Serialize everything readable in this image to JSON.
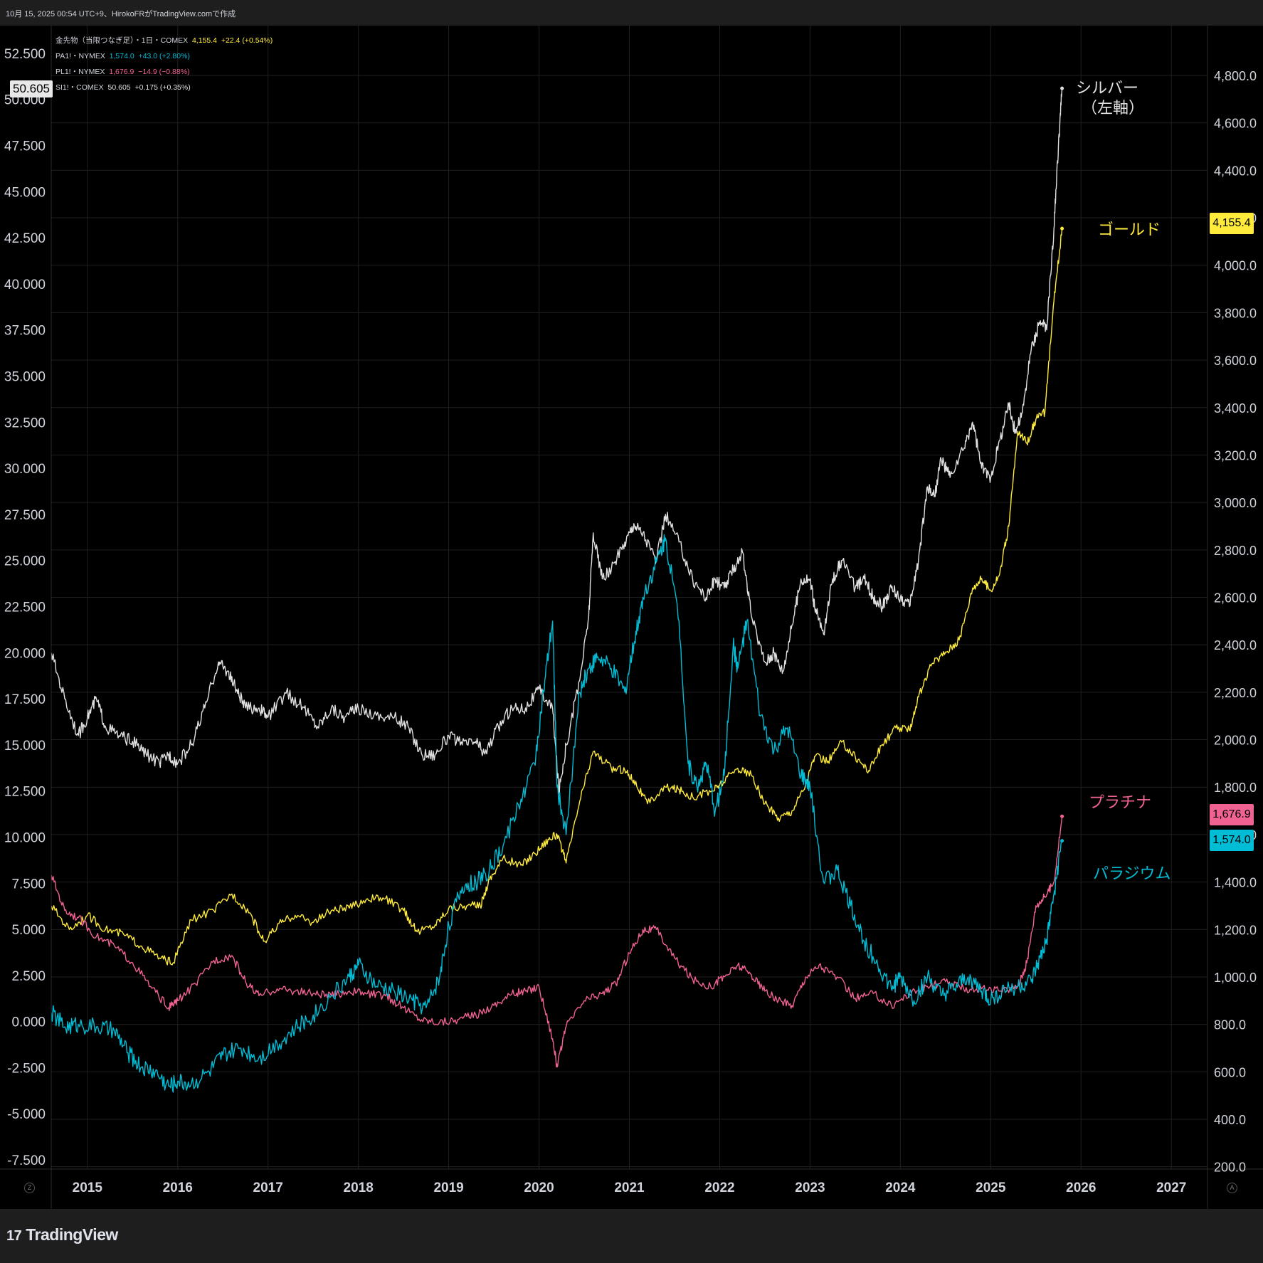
{
  "header": {
    "caption": "10月 15, 2025 00:54 UTC+9、HirokoFRがTradingView.comで作成"
  },
  "legend": [
    {
      "symbol": "金先物（当限つなぎ足）・1日・COMEX",
      "value": "4,155.4",
      "change": "+22.4 (+0.54%)",
      "color": "#ffeb3b"
    },
    {
      "symbol": "PA1!・NYMEX",
      "value": "1,574.0",
      "change": "+43.0 (+2.80%)",
      "color": "#00bcd4"
    },
    {
      "symbol": "PL1!・NYMEX",
      "value": "1,676.9",
      "change": "−14.9 (−0.88%)",
      "color": "#f06292"
    },
    {
      "symbol": "SI1!・COMEX",
      "value": "50.605",
      "change": "+0.175 (+0.35%)",
      "color": "#e0e0e0"
    }
  ],
  "crosshair_value": "50.605",
  "series_labels": {
    "silver_line1": "シルバー",
    "silver_line2": "（左軸）",
    "gold": "ゴールド",
    "platinum": "プラチナ",
    "palladium": "パラジウム"
  },
  "price_tags": [
    {
      "text": "4,155.4",
      "value": 4155.4,
      "color": "#ffeb3b"
    },
    {
      "text": "1,676.9",
      "value": 1676.9,
      "color": "#f06292"
    },
    {
      "text": "1,574.0",
      "value": 1574.0,
      "color": "#00bcd4"
    }
  ],
  "axis_buttons": {
    "left": "Z",
    "right": "A"
  },
  "logo": {
    "mark": "17",
    "text": "TradingView"
  },
  "colors": {
    "background": "#000000",
    "grid": "#1f1f1f",
    "gold": "#ffeb3b",
    "silver": "#e0e0e0",
    "platinum": "#f06292",
    "palladium": "#00bcd4"
  },
  "chart_data": {
    "type": "line",
    "grid": true,
    "left_axis": {
      "ticks": [
        "52.500",
        "50.000",
        "47.500",
        "45.000",
        "42.500",
        "40.000",
        "37.500",
        "35.000",
        "32.500",
        "30.000",
        "27.500",
        "25.000",
        "22.500",
        "20.000",
        "17.500",
        "15.000",
        "12.500",
        "10.000",
        "7.500",
        "5.000",
        "2.500",
        "0.000",
        "-2.500",
        "-5.000",
        "-7.500"
      ],
      "ylim": [
        -8.0,
        54.0
      ]
    },
    "right_axis": {
      "ticks": [
        "4,800.0",
        "4,600.0",
        "4,400.0",
        "4,200.0",
        "4,000.0",
        "3,800.0",
        "3,600.0",
        "3,400.0",
        "3,200.0",
        "3,000.0",
        "2,800.0",
        "2,600.0",
        "2,400.0",
        "2,200.0",
        "2,000.0",
        "1,800.0",
        "1,600.0",
        "1,400.0",
        "1,200.0",
        "1,000.0",
        "800.0",
        "600.0",
        "400.0",
        "200.0"
      ],
      "ylim": [
        190,
        5010
      ]
    },
    "x_axis": {
      "ticks": [
        "2015",
        "2016",
        "2017",
        "2018",
        "2019",
        "2020",
        "2021",
        "2022",
        "2023",
        "2024",
        "2025",
        "2026",
        "2027"
      ],
      "xlim": [
        2014.6,
        2027.4
      ]
    },
    "series": [
      {
        "name": "シルバー",
        "axis": "left",
        "color": "#e0e0e0",
        "x": [
          2014.6,
          2014.75,
          2014.9,
          2015.0,
          2015.1,
          2015.2,
          2015.35,
          2015.5,
          2015.65,
          2015.8,
          2015.9,
          2016.0,
          2016.15,
          2016.3,
          2016.45,
          2016.55,
          2016.65,
          2016.75,
          2016.9,
          2017.0,
          2017.2,
          2017.4,
          2017.55,
          2017.7,
          2017.85,
          2018.0,
          2018.2,
          2018.4,
          2018.55,
          2018.7,
          2018.85,
          2019.0,
          2019.15,
          2019.3,
          2019.4,
          2019.55,
          2019.7,
          2019.85,
          2020.0,
          2020.15,
          2020.22,
          2020.3,
          2020.45,
          2020.55,
          2020.6,
          2020.7,
          2020.8,
          2020.95,
          2021.05,
          2021.15,
          2021.3,
          2021.4,
          2021.55,
          2021.7,
          2021.85,
          2021.95,
          2022.05,
          2022.15,
          2022.25,
          2022.35,
          2022.5,
          2022.6,
          2022.7,
          2022.8,
          2022.9,
          2023.0,
          2023.05,
          2023.15,
          2023.25,
          2023.35,
          2023.5,
          2023.6,
          2023.7,
          2023.8,
          2023.9,
          2024.0,
          2024.1,
          2024.2,
          2024.3,
          2024.38,
          2024.45,
          2024.55,
          2024.7,
          2024.8,
          2024.9,
          2025.0,
          2025.1,
          2025.2,
          2025.27,
          2025.35,
          2025.45,
          2025.55,
          2025.62,
          2025.7,
          2025.75,
          2025.79
        ],
        "y": [
          20.0,
          17.5,
          15.5,
          16.5,
          17.5,
          16.0,
          15.5,
          15.2,
          14.5,
          14.0,
          14.5,
          14.0,
          15.0,
          17.0,
          19.5,
          19.0,
          18.0,
          17.0,
          17.0,
          16.5,
          17.8,
          17.0,
          16.0,
          17.0,
          16.5,
          17.0,
          16.6,
          16.5,
          16.0,
          14.5,
          14.5,
          15.5,
          15.0,
          15.2,
          14.5,
          16.0,
          17.0,
          17.0,
          18.0,
          17.0,
          12.5,
          15.0,
          18.5,
          22.0,
          26.5,
          24.0,
          24.5,
          26.0,
          27.0,
          26.5,
          25.0,
          27.5,
          26.0,
          24.0,
          23.0,
          24.0,
          23.5,
          24.5,
          25.5,
          22.0,
          19.5,
          20.0,
          19.0,
          21.5,
          24.0,
          24.0,
          22.5,
          21.0,
          24.0,
          25.0,
          23.5,
          24.0,
          23.0,
          22.5,
          23.5,
          23.0,
          22.5,
          25.0,
          29.0,
          28.5,
          30.5,
          29.5,
          31.0,
          32.5,
          30.0,
          29.5,
          31.5,
          33.5,
          32.0,
          33.0,
          36.5,
          38.0,
          37.5,
          43.0,
          47.5,
          50.6
        ]
      },
      {
        "name": "ゴールド",
        "axis": "right",
        "color": "#ffeb3b",
        "x": [
          2014.6,
          2014.8,
          2015.0,
          2015.2,
          2015.4,
          2015.6,
          2015.8,
          2015.95,
          2016.15,
          2016.4,
          2016.6,
          2016.8,
          2016.95,
          2017.15,
          2017.3,
          2017.5,
          2017.7,
          2017.9,
          2018.1,
          2018.3,
          2018.5,
          2018.65,
          2018.85,
          2019.0,
          2019.2,
          2019.35,
          2019.45,
          2019.6,
          2019.8,
          2019.95,
          2020.1,
          2020.2,
          2020.3,
          2020.45,
          2020.6,
          2020.8,
          2020.95,
          2021.05,
          2021.2,
          2021.4,
          2021.55,
          2021.7,
          2021.9,
          2022.0,
          2022.2,
          2022.35,
          2022.5,
          2022.65,
          2022.8,
          2022.95,
          2023.05,
          2023.2,
          2023.35,
          2023.5,
          2023.65,
          2023.8,
          2023.95,
          2024.1,
          2024.2,
          2024.35,
          2024.5,
          2024.65,
          2024.8,
          2024.9,
          2025.0,
          2025.1,
          2025.2,
          2025.3,
          2025.4,
          2025.5,
          2025.6,
          2025.7,
          2025.79
        ],
        "y": [
          1300,
          1200,
          1260,
          1200,
          1180,
          1130,
          1080,
          1060,
          1240,
          1280,
          1350,
          1270,
          1150,
          1230,
          1260,
          1230,
          1280,
          1290,
          1330,
          1330,
          1280,
          1190,
          1220,
          1290,
          1300,
          1300,
          1410,
          1500,
          1470,
          1520,
          1580,
          1600,
          1480,
          1740,
          1950,
          1880,
          1870,
          1830,
          1730,
          1800,
          1790,
          1760,
          1780,
          1810,
          1880,
          1850,
          1730,
          1670,
          1700,
          1810,
          1930,
          1910,
          1990,
          1930,
          1870,
          1980,
          2050,
          2040,
          2180,
          2320,
          2370,
          2420,
          2640,
          2680,
          2630,
          2700,
          2900,
          3300,
          3250,
          3350,
          3380,
          3850,
          4155
        ]
      },
      {
        "name": "プラチナ",
        "axis": "right",
        "color": "#f06292",
        "x": [
          2014.6,
          2014.75,
          2014.9,
          2015.1,
          2015.3,
          2015.5,
          2015.7,
          2015.9,
          2016.0,
          2016.2,
          2016.4,
          2016.6,
          2016.75,
          2016.9,
          2017.1,
          2017.3,
          2017.5,
          2017.7,
          2017.9,
          2018.1,
          2018.3,
          2018.5,
          2018.7,
          2018.9,
          2019.1,
          2019.3,
          2019.5,
          2019.7,
          2019.85,
          2020.0,
          2020.15,
          2020.2,
          2020.3,
          2020.5,
          2020.7,
          2020.85,
          2021.0,
          2021.15,
          2021.3,
          2021.5,
          2021.7,
          2021.9,
          2022.05,
          2022.2,
          2022.35,
          2022.5,
          2022.65,
          2022.8,
          2022.95,
          2023.1,
          2023.3,
          2023.5,
          2023.7,
          2023.9,
          2024.1,
          2024.3,
          2024.5,
          2024.7,
          2024.9,
          2025.1,
          2025.3,
          2025.4,
          2025.5,
          2025.6,
          2025.7,
          2025.79
        ],
        "y": [
          1430,
          1280,
          1250,
          1170,
          1130,
          1060,
          960,
          870,
          900,
          970,
          1070,
          1090,
          980,
          920,
          950,
          940,
          930,
          920,
          940,
          930,
          920,
          870,
          820,
          810,
          820,
          840,
          880,
          930,
          940,
          960,
          740,
          620,
          790,
          900,
          930,
          970,
          1100,
          1200,
          1200,
          1080,
          990,
          960,
          1000,
          1050,
          1010,
          940,
          900,
          880,
          1000,
          1050,
          1000,
          910,
          930,
          880,
          930,
          960,
          980,
          950,
          950,
          940,
          960,
          1060,
          1300,
          1340,
          1400,
          1677
        ]
      },
      {
        "name": "パラジウム",
        "axis": "right",
        "color": "#00bcd4",
        "x": [
          2014.6,
          2014.75,
          2014.9,
          2015.1,
          2015.3,
          2015.45,
          2015.6,
          2015.75,
          2015.9,
          2016.0,
          2016.15,
          2016.35,
          2016.5,
          2016.7,
          2016.9,
          2017.1,
          2017.3,
          2017.5,
          2017.7,
          2017.9,
          2018.0,
          2018.2,
          2018.4,
          2018.6,
          2018.75,
          2018.9,
          2019.0,
          2019.15,
          2019.3,
          2019.45,
          2019.6,
          2019.8,
          2019.95,
          2020.05,
          2020.15,
          2020.2,
          2020.3,
          2020.45,
          2020.55,
          2020.65,
          2020.8,
          2020.95,
          2021.05,
          2021.15,
          2021.3,
          2021.4,
          2021.55,
          2021.65,
          2021.75,
          2021.85,
          2021.95,
          2022.05,
          2022.15,
          2022.2,
          2022.3,
          2022.45,
          2022.6,
          2022.75,
          2022.9,
          2023.0,
          2023.15,
          2023.3,
          2023.45,
          2023.6,
          2023.75,
          2023.9,
          2024.0,
          2024.15,
          2024.3,
          2024.45,
          2024.6,
          2024.75,
          2024.9,
          2025.0,
          2025.15,
          2025.3,
          2025.45,
          2025.55,
          2025.62,
          2025.7,
          2025.79
        ],
        "y": [
          850,
          790,
          800,
          790,
          770,
          680,
          620,
          600,
          540,
          560,
          550,
          600,
          670,
          700,
          660,
          720,
          780,
          840,
          920,
          1000,
          1050,
          960,
          940,
          900,
          870,
          1000,
          1220,
          1380,
          1400,
          1450,
          1550,
          1750,
          1900,
          2200,
          2500,
          1800,
          1600,
          2200,
          2300,
          2350,
          2300,
          2200,
          2400,
          2600,
          2750,
          2850,
          2500,
          1900,
          1800,
          1900,
          1700,
          1850,
          2400,
          2300,
          2500,
          2100,
          1950,
          2050,
          1850,
          1800,
          1400,
          1450,
          1300,
          1150,
          1050,
          950,
          1000,
          900,
          1000,
          920,
          950,
          1000,
          940,
          900,
          950,
          960,
          980,
          1080,
          1150,
          1350,
          1574
        ]
      }
    ]
  }
}
